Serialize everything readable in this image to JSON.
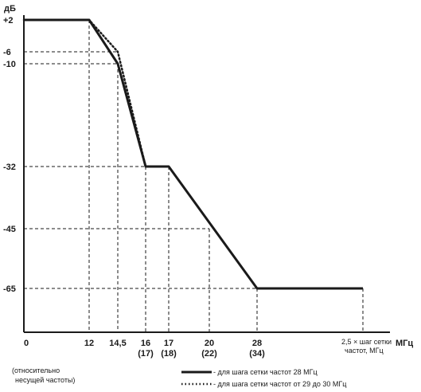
{
  "chart_data": {
    "type": "line",
    "y_unit": "дБ",
    "x_unit": "2,5 × шаг сетки частот, МГц",
    "x_unit_lines": [
      "2,5 × шаг сетки",
      "частот, МГц"
    ],
    "x_unit_suffix": "МГц",
    "origin_label": "0",
    "y_ticks": [
      {
        "value": 2,
        "label": "+2"
      },
      {
        "value": -6,
        "label": "-6"
      },
      {
        "value": -10,
        "label": "-10"
      },
      {
        "value": -32,
        "label": "-32"
      },
      {
        "value": -45,
        "label": "-45"
      },
      {
        "value": -65,
        "label": "-65"
      }
    ],
    "x_ticks": [
      {
        "value": 12,
        "label": "12",
        "alt": ""
      },
      {
        "value": 14.5,
        "label": "14,5",
        "alt": ""
      },
      {
        "value": 16,
        "label": "16",
        "alt": "(17)"
      },
      {
        "value": 17,
        "label": "17",
        "alt": "(18)"
      },
      {
        "value": 20,
        "label": "20",
        "alt": "(22)"
      },
      {
        "value": 28,
        "label": "28",
        "alt": "(34)"
      }
    ],
    "x_break_value": 35,
    "ylim": [
      -78,
      2
    ],
    "series": [
      {
        "name": "- для шага сетки частот 28 МГц",
        "style": "solid",
        "points": [
          [
            0,
            2
          ],
          [
            12,
            2
          ],
          [
            14.5,
            -10
          ],
          [
            16,
            -32
          ],
          [
            17,
            -32
          ],
          [
            28,
            -65
          ],
          [
            35,
            -65
          ]
        ]
      },
      {
        "name": "- для шага сетки частот от 29 до 30 МГц",
        "style": "dotted",
        "points": [
          [
            0,
            2
          ],
          [
            12,
            2
          ],
          [
            14.5,
            -6
          ],
          [
            16,
            -32
          ]
        ]
      }
    ],
    "footnote": [
      "(относительно",
      "несущей частоты)"
    ],
    "guide_lines": true,
    "line_color": "#1a1a1a"
  }
}
